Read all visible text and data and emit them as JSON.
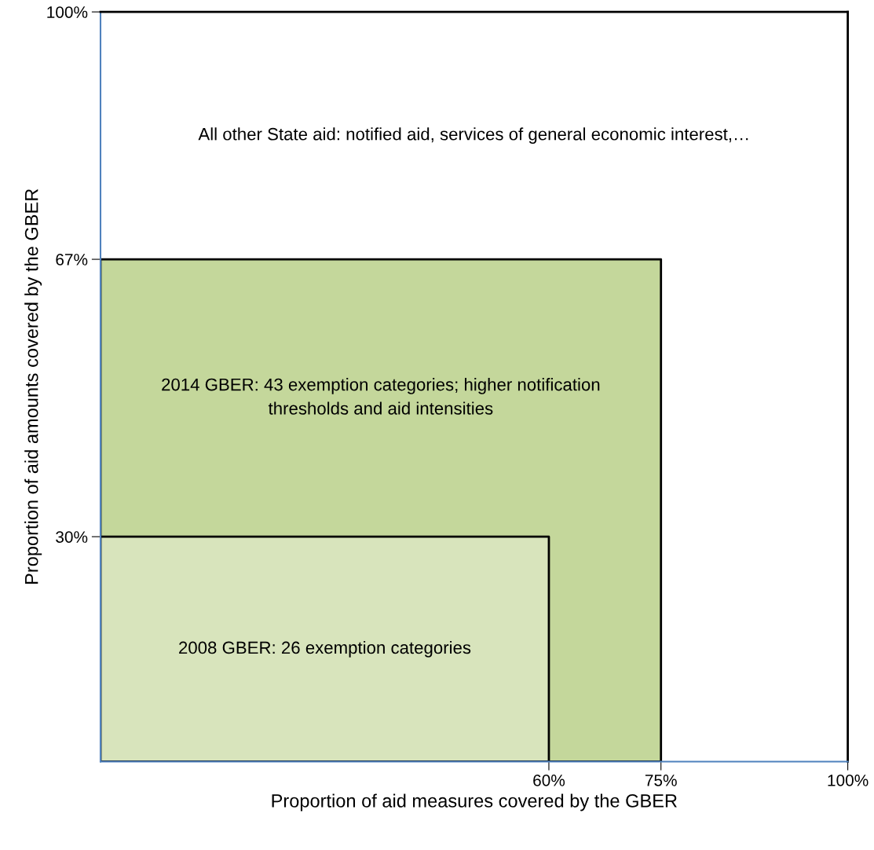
{
  "chart_data": {
    "type": "area",
    "xlabel": "Proportion of aid measures covered by the GBER",
    "ylabel": "Proportion of aid amounts covered by the GBER",
    "series": [
      {
        "color": "#c4d79b",
        "x": [
          0,
          75
        ],
        "values": [
          67,
          67
        ]
      },
      {
        "color": "#d8e4bc",
        "x": [
          0,
          60
        ],
        "values": [
          30,
          30
        ]
      }
    ],
    "annotations": [
      "All other State aid: notified aid, services of general economic interest,…",
      "2014 GBER: 43 exemption categories; higher notification\nthresholds and aid intensities",
      "2008 GBER: 26 exemption categories"
    ],
    "xlim": [
      0,
      100
    ],
    "ylim": [
      0,
      100
    ],
    "xticks": [
      {
        "value": 60,
        "label": "60%"
      },
      {
        "value": 75,
        "label": "75%"
      },
      {
        "value": 100,
        "label": "100%"
      }
    ],
    "yticks": [
      {
        "value": 30,
        "label": "30%"
      },
      {
        "value": 67,
        "label": "67%"
      },
      {
        "value": 100,
        "label": "100%"
      }
    ],
    "grid": false
  }
}
